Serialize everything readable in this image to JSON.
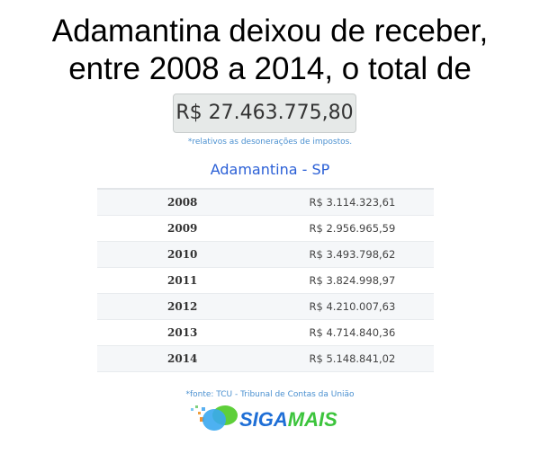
{
  "headline": {
    "line1": "Adamantina deixou de receber,",
    "line2": "entre 2008 a 2014, o total de"
  },
  "total": "R$ 27.463.775,80",
  "note": "*relativos as desonerações de impostos.",
  "city": "Adamantina - SP",
  "rows": [
    {
      "year": "2008",
      "value": "R$ 3.114.323,61"
    },
    {
      "year": "2009",
      "value": "R$ 2.956.965,59"
    },
    {
      "year": "2010",
      "value": "R$ 3.493.798,62"
    },
    {
      "year": "2011",
      "value": "R$ 3.824.998,97"
    },
    {
      "year": "2012",
      "value": "R$ 4.210.007,63"
    },
    {
      "year": "2013",
      "value": "R$ 4.714.840,36"
    },
    {
      "year": "2014",
      "value": "R$ 5.148.841,02"
    }
  ],
  "source": "*fonte: TCU - Tribunal de Contas da União",
  "logo": {
    "text": "SIGAMAIS",
    "colors": {
      "siga": "#1f6fd6",
      "mais": "#3cc43c"
    }
  }
}
